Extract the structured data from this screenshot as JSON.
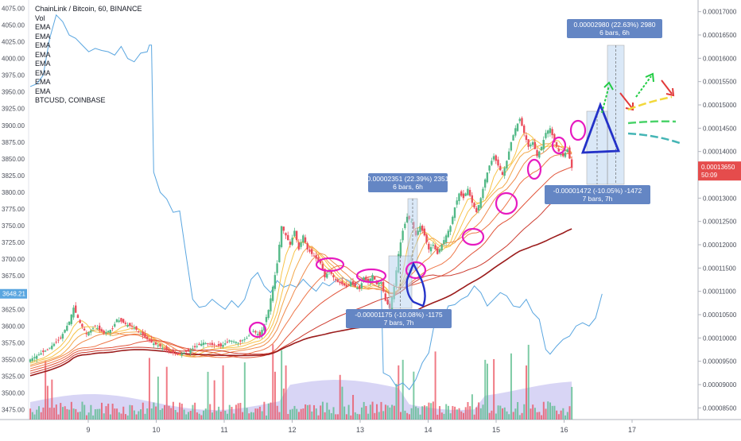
{
  "header": {
    "title": "ChainLink / Bitcoin, 60, BINANCE",
    "indicators": [
      "Vol",
      "EMA",
      "EMA",
      "EMA",
      "EMA",
      "EMA",
      "EMA",
      "EMA",
      "EMA"
    ],
    "overlay_symbol": "BTCUSD, COINBASE"
  },
  "chart_data": {
    "type": "candlestick",
    "primary": {
      "symbol": "LINKBTC",
      "exchange": "BINANCE",
      "interval": "60"
    },
    "overlay": {
      "symbol": "BTCUSD",
      "exchange": "COINBASE",
      "type": "line"
    },
    "x_ticks": [
      "9",
      "10",
      "11",
      "12",
      "13",
      "14",
      "15",
      "16",
      "17"
    ],
    "left_axis": {
      "ticks": [
        "4075.00",
        "4050.00",
        "4025.00",
        "4000.00",
        "3975.00",
        "3950.00",
        "3925.00",
        "3900.00",
        "3875.00",
        "3850.00",
        "3825.00",
        "3800.00",
        "3775.00",
        "3750.00",
        "3725.00",
        "3700.00",
        "3675.00",
        "3650.00",
        "3625.00",
        "3600.00",
        "3575.00",
        "3550.00",
        "3525.00",
        "3500.00",
        "3475.00"
      ],
      "last_value": "3648.21",
      "range": [
        3465,
        4085
      ]
    },
    "right_axis": {
      "ticks": [
        "0.00017000",
        "0.00016500",
        "0.00016000",
        "0.00015500",
        "0.00015000",
        "0.00014500",
        "0.00014000",
        "0.00013500",
        "0.00013000",
        "0.00012500",
        "0.00012000",
        "0.00011500",
        "0.00011000",
        "0.00010500",
        "0.00010000",
        "0.00009500",
        "0.00009000",
        "0.00008500"
      ],
      "last_price": "0.00013650",
      "countdown": "50:09",
      "range": [
        8.25e-05,
        0.0001725
      ]
    },
    "btc_line": [
      [
        0,
        3958
      ],
      [
        3,
        3962
      ],
      [
        6,
        3975
      ],
      [
        9,
        4030
      ],
      [
        12,
        4065
      ],
      [
        15,
        4055
      ],
      [
        18,
        4035
      ],
      [
        21,
        4030
      ],
      [
        24,
        4020
      ],
      [
        27,
        4010
      ],
      [
        30,
        4015
      ],
      [
        33,
        4012
      ],
      [
        36,
        4010
      ],
      [
        39,
        4005
      ],
      [
        42,
        4018
      ],
      [
        45,
        4000
      ],
      [
        48,
        3995
      ],
      [
        51,
        4008
      ],
      [
        54,
        4010
      ],
      [
        55,
        4020
      ],
      [
        56,
        4020
      ],
      [
        57,
        3830
      ],
      [
        60,
        3800
      ],
      [
        63,
        3790
      ],
      [
        66,
        3770
      ],
      [
        69,
        3772
      ],
      [
        72,
        3705
      ],
      [
        75,
        3640
      ],
      [
        78,
        3628
      ],
      [
        81,
        3630
      ],
      [
        84,
        3640
      ],
      [
        87,
        3632
      ],
      [
        90,
        3625
      ],
      [
        93,
        3638
      ],
      [
        96,
        3628
      ],
      [
        99,
        3640
      ],
      [
        102,
        3670
      ],
      [
        105,
        3680
      ],
      [
        108,
        3660
      ],
      [
        111,
        3650
      ],
      [
        114,
        3668
      ],
      [
        117,
        3658
      ],
      [
        120,
        3662
      ],
      [
        123,
        3658
      ],
      [
        126,
        3670
      ],
      [
        129,
        3660
      ],
      [
        132,
        3652
      ],
      [
        135,
        3665
      ],
      [
        138,
        3660
      ],
      [
        141,
        3668
      ],
      [
        144,
        3672
      ],
      [
        147,
        3668
      ],
      [
        150,
        3660
      ],
      [
        153,
        3672
      ],
      [
        156,
        3668
      ],
      [
        159,
        3665
      ],
      [
        162,
        3664
      ],
      [
        163,
        3530
      ],
      [
        166,
        3525
      ],
      [
        169,
        3510
      ],
      [
        172,
        3515
      ],
      [
        175,
        3505
      ],
      [
        178,
        3520
      ],
      [
        181,
        3545
      ],
      [
        184,
        3560
      ],
      [
        187,
        3610
      ],
      [
        190,
        3605
      ],
      [
        193,
        3630
      ],
      [
        196,
        3632
      ],
      [
        199,
        3640
      ],
      [
        202,
        3645
      ],
      [
        205,
        3660
      ],
      [
        208,
        3650
      ],
      [
        211,
        3630
      ],
      [
        214,
        3640
      ],
      [
        217,
        3650
      ],
      [
        220,
        3645
      ],
      [
        223,
        3630
      ],
      [
        226,
        3628
      ],
      [
        229,
        3640
      ],
      [
        232,
        3620
      ],
      [
        235,
        3610
      ],
      [
        238,
        3565
      ],
      [
        240,
        3558
      ],
      [
        243,
        3570
      ],
      [
        246,
        3580
      ],
      [
        249,
        3585
      ],
      [
        252,
        3600
      ],
      [
        255,
        3605
      ],
      [
        258,
        3600
      ],
      [
        261,
        3612
      ],
      [
        264,
        3648
      ]
    ],
    "ohlc": [
      [
        0,
        9.54e-05
      ],
      [
        8,
        9.75e-05
      ],
      [
        14,
        0.0001
      ],
      [
        18,
        0.0001035
      ],
      [
        20,
        0.0001065
      ],
      [
        23,
        0.0001032
      ],
      [
        26,
        0.0001008
      ],
      [
        30,
        0.0001025
      ],
      [
        34,
        0.000101
      ],
      [
        38,
        0.000102
      ],
      [
        40,
        0.000104
      ],
      [
        44,
        0.000103
      ],
      [
        48,
        0.0001022
      ],
      [
        52,
        0.0001005
      ],
      [
        56,
        9.9e-05
      ],
      [
        60,
        9.82e-05
      ],
      [
        64,
        9.7e-05
      ],
      [
        68,
        9.64e-05
      ],
      [
        72,
        9.7e-05
      ],
      [
        76,
        9.8e-05
      ],
      [
        80,
        9.9e-05
      ],
      [
        84,
        9.85e-05
      ],
      [
        88,
        9.82e-05
      ],
      [
        92,
        9.95e-05
      ],
      [
        96,
        9.9e-05
      ],
      [
        100,
        0.0001
      ],
      [
        103,
        0.0001015
      ],
      [
        106,
        0.0001005
      ],
      [
        108,
        0.000103
      ],
      [
        110,
        0.000106
      ],
      [
        112,
        0.000111
      ],
      [
        114,
        0.000116
      ],
      [
        116,
        0.000124
      ],
      [
        118,
        0.000122
      ],
      [
        120,
        0.00012
      ],
      [
        122,
        0.000123
      ],
      [
        124,
        0.000119
      ],
      [
        126,
        0.000122
      ],
      [
        128,
        0.000119
      ],
      [
        130,
        0.000118
      ],
      [
        132,
        0.000117
      ],
      [
        134,
        0.000116
      ],
      [
        136,
        0.000113
      ],
      [
        138,
        0.0001145
      ],
      [
        140,
        0.000113
      ],
      [
        142,
        0.000112
      ],
      [
        144,
        0.0001115
      ],
      [
        146,
        0.000111
      ],
      [
        148,
        0.000112
      ],
      [
        150,
        0.000111
      ],
      [
        152,
        0.0001105
      ],
      [
        154,
        0.000113
      ],
      [
        156,
        0.000112
      ],
      [
        158,
        0.0001135
      ],
      [
        160,
        0.0001115
      ],
      [
        162,
        0.000112
      ],
      [
        164,
        0.000108
      ],
      [
        166,
        0.0001065
      ],
      [
        168,
        0.000111
      ],
      [
        170,
        0.000118
      ],
      [
        172,
        0.000123
      ],
      [
        174,
        0.000126
      ],
      [
        176,
        0.000125
      ],
      [
        178,
        0.000122
      ],
      [
        180,
        0.000124
      ],
      [
        182,
        0.000122
      ],
      [
        184,
        0.000119
      ],
      [
        186,
        0.00012
      ],
      [
        188,
        0.000118
      ],
      [
        190,
        0.00012
      ],
      [
        192,
        0.000122
      ],
      [
        194,
        0.000124
      ],
      [
        196,
        0.000128
      ],
      [
        198,
        0.000131
      ],
      [
        200,
        0.00013
      ],
      [
        202,
        0.000132
      ],
      [
        204,
        0.000129
      ],
      [
        206,
        0.000127
      ],
      [
        208,
        0.00013
      ],
      [
        210,
        0.000134
      ],
      [
        212,
        0.000137
      ],
      [
        214,
        0.000139
      ],
      [
        216,
        0.000137
      ],
      [
        218,
        0.000135
      ],
      [
        220,
        0.000138
      ],
      [
        222,
        0.000142
      ],
      [
        224,
        0.000145
      ],
      [
        226,
        0.000147
      ],
      [
        228,
        0.000144
      ],
      [
        230,
        0.000141
      ],
      [
        232,
        0.000142
      ],
      [
        234,
        0.000139
      ],
      [
        236,
        0.000141
      ],
      [
        238,
        0.000144
      ],
      [
        240,
        0.000145
      ],
      [
        242,
        0.000142
      ],
      [
        244,
        0.00014
      ],
      [
        246,
        0.000139
      ],
      [
        248,
        0.0001405
      ],
      [
        250,
        0.0001365
      ]
    ],
    "volume_note": "volume histogram shown at bottom of chart",
    "measurements": [
      {
        "label": "0.00002351 (22.39%) 2351",
        "sub": "6 bars, 6h"
      },
      {
        "label": "-0.00001175 (-10.08%) -1175",
        "sub": "7 bars, 7h"
      },
      {
        "label": "0.00002980 (22.63%) 2980",
        "sub": "6 bars, 6h"
      },
      {
        "label": "-0.00001472 (-10.05%) -1472",
        "sub": "7 bars, 7h"
      }
    ],
    "colors": {
      "up": "#53b987",
      "down": "#eb4d5c",
      "btc_line": "#5aa6e0",
      "ema_fast": "#f7c34a",
      "ema_mid": "#f08a4b",
      "ema_slow": "#e1543a",
      "ema_200": "#9b1c1c",
      "volume_area": "#b8b3ec",
      "measure_box": "#bcd7f2",
      "measure_label": "#6486c4",
      "ellipse": "#e61bc0",
      "triangle": "#2432c8",
      "price_tag": "#e54c4c"
    }
  }
}
